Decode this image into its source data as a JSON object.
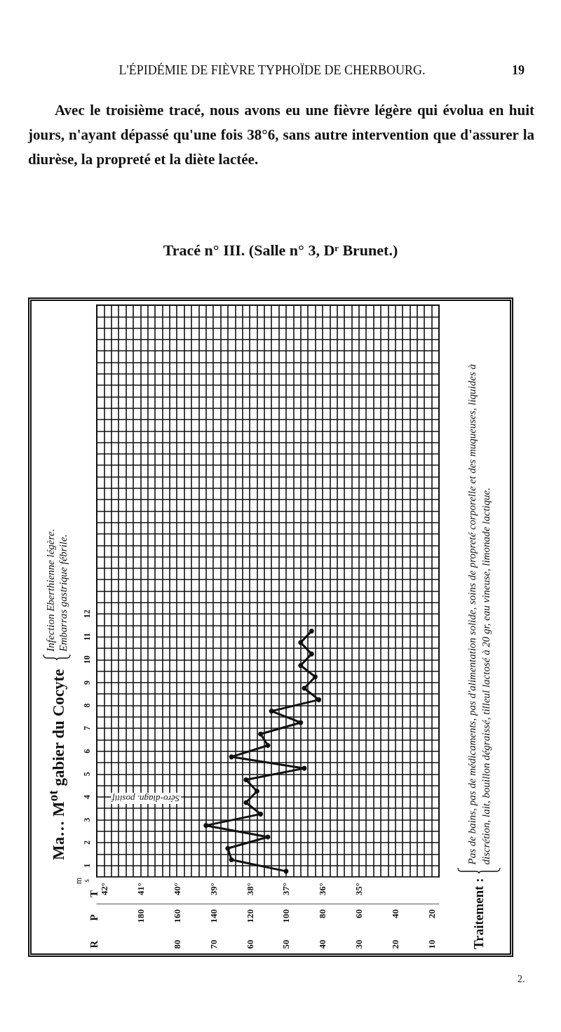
{
  "chart_data": {
    "type": "line",
    "title": "Tracé n° III. (Salle n° 3, Dʳ Brunet.)",
    "annotations": [
      "L'ÉPIDÉMIE DE FIÈVRE TYPHOÏDE DE CHERBOURG.",
      "19",
      "Avec le troisième tracé, nous avons eu une fièvre légère qui évolua en huit jours, n'ayant dépassé qu'une fois 38°6, sans autre intervention que d'assurer la diurèse, la propreté et la diète lactée.",
      "Ma… M$^{ot}$ gabier du Cocyte",
      "Infection Eberthienne légère.",
      "Embarras gastrique fébrile.",
      "Traitement :",
      "Pas de bains, pas de médicaments, pas d'alimentation solide, soins de propreté corporelle et des muqueuses, liquides à discrétion, lait, bouillon dégraissé, tilleul lactosé à 20 gr, eau vineuse, limonade lactique.",
      "m",
      "s",
      "2.",
      "Séro-diagn. positif",
      "R",
      "80",
      "70",
      "60",
      "50",
      "40",
      "30",
      "20",
      "10",
      "T",
      "P"
    ],
    "xlim": [
      42.2,
      32.8
    ],
    "xticks": [
      {
        "value": 42,
        "label": "42°"
      },
      {
        "value": 41,
        "label": "41°"
      },
      {
        "value": 40,
        "label": "40°"
      },
      {
        "value": 39,
        "label": "39°"
      },
      {
        "value": 38,
        "label": "38°"
      },
      {
        "value": 37,
        "label": "37°"
      },
      {
        "value": 36,
        "label": "36°"
      },
      {
        "value": 35,
        "label": "35°"
      }
    ],
    "x2lim": [
      204,
      16
    ],
    "x2ticks": [
      180,
      160,
      140,
      120,
      100,
      80,
      60,
      40,
      20
    ],
    "ylim": [
      0.5,
      25.5
    ],
    "yticks": [
      1,
      2,
      3,
      4,
      5,
      6,
      7,
      8,
      9,
      10,
      11,
      12
    ],
    "grid": true,
    "marker": "circle",
    "line_style": "solid",
    "series": [
      {
        "color": "#111111",
        "x": [
          37.0,
          38.5,
          38.6,
          37.5,
          39.2,
          37.7,
          38.1,
          37.8,
          38.1,
          36.5,
          38.5,
          37.5,
          37.7,
          36.6,
          37.4,
          36.1,
          36.5,
          36.2,
          36.6,
          36.3,
          36.6,
          36.3
        ],
        "values": [
          0.75,
          1.25,
          1.75,
          2.25,
          2.75,
          3.25,
          3.75,
          4.25,
          4.75,
          5.25,
          5.75,
          6.25,
          6.75,
          7.25,
          7.75,
          8.25,
          8.75,
          9.25,
          9.75,
          10.25,
          10.75,
          11.25
        ]
      }
    ]
  }
}
